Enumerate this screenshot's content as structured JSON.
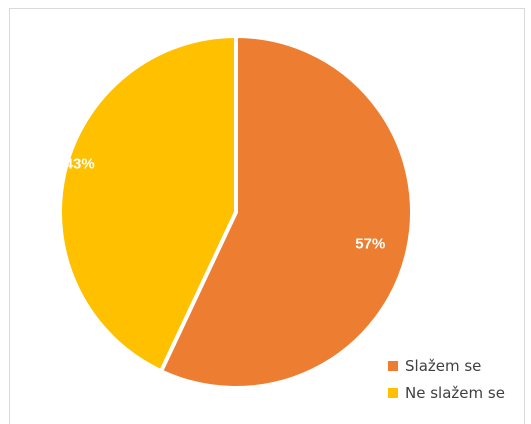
{
  "chart_data": {
    "type": "pie",
    "title": "",
    "slices": [
      {
        "name": "Slažem se",
        "value": 57,
        "label": "57%",
        "color": "#ED7D31"
      },
      {
        "name": "Ne slažem se",
        "value": 43,
        "label": "43%",
        "color": "#FFC000"
      }
    ],
    "legend": {
      "position": "bottom-right",
      "items": [
        "Slažem se",
        "Ne slažem se"
      ]
    }
  }
}
